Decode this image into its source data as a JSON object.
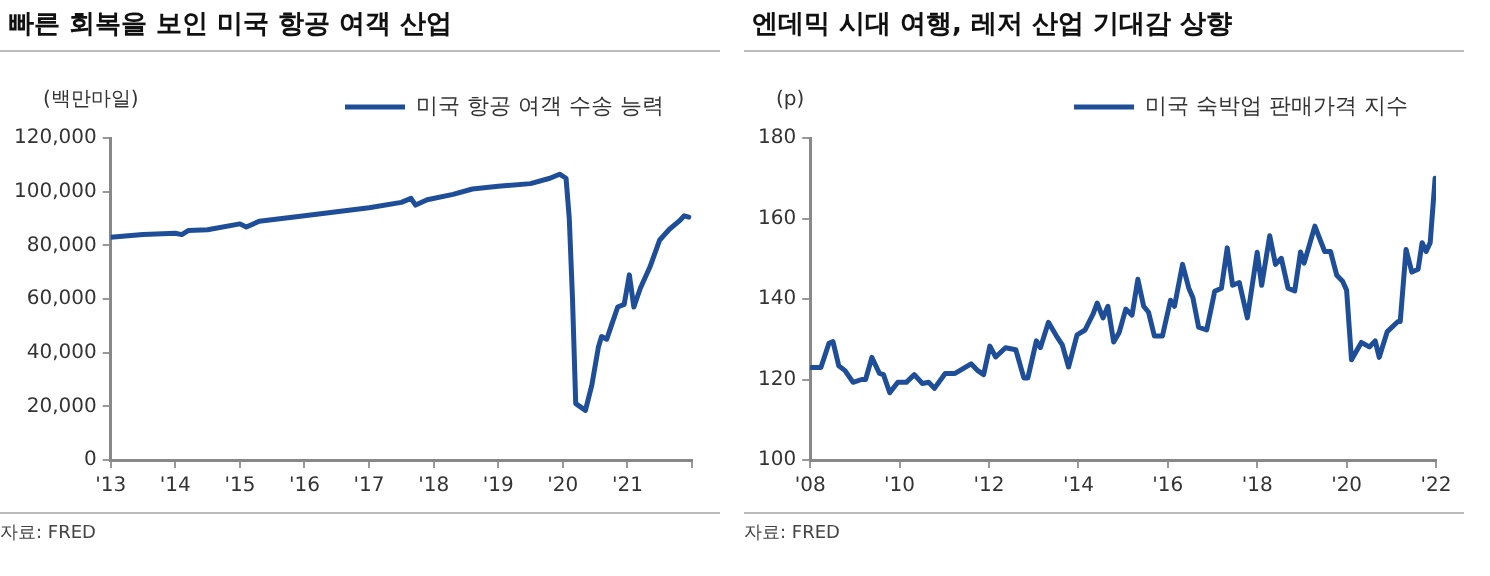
{
  "chart_data": [
    {
      "type": "line",
      "title": "빠른 회복을 보인 미국 항공 여객 산업",
      "ylabel": "(백만마일)",
      "annotations": [
        "자료: FRED"
      ],
      "legend": "top right",
      "grid": false,
      "marker": "none",
      "line_style": "solid",
      "xlim": [
        2013,
        2022
      ],
      "xticks": [
        {
          "value": 2013,
          "label": "'13"
        },
        {
          "value": 2014,
          "label": "'14"
        },
        {
          "value": 2015,
          "label": "'15"
        },
        {
          "value": 2016,
          "label": "'16"
        },
        {
          "value": 2017,
          "label": "'17"
        },
        {
          "value": 2018,
          "label": "'18"
        },
        {
          "value": 2019,
          "label": "'19"
        },
        {
          "value": 2020,
          "label": "'20"
        },
        {
          "value": 2021,
          "label": "'21"
        },
        {
          "value": 2022,
          "label": null
        }
      ],
      "ylim": [
        0,
        120000
      ],
      "yticks": [
        0,
        {
          "value": 20000,
          "label": "20,000"
        },
        {
          "value": 40000,
          "label": "40,000"
        },
        {
          "value": 60000,
          "label": "60,000"
        },
        {
          "value": 80000,
          "label": "80,000"
        },
        {
          "value": 100000,
          "label": "100,000"
        },
        {
          "value": 120000,
          "label": "120,000"
        }
      ],
      "series": [
        {
          "name": "미국 항공 여객 수송 능력",
          "color": "#1f4e99",
          "x": [
            2013.0,
            2013.5,
            2014.0,
            2014.1,
            2014.2,
            2014.5,
            2015.0,
            2015.1,
            2015.3,
            2016.0,
            2016.5,
            2017.0,
            2017.5,
            2017.65,
            2017.72,
            2017.9,
            2018.3,
            2018.6,
            2019.0,
            2019.5,
            2019.8,
            2019.95,
            2020.05,
            2020.1,
            2020.15,
            2020.2,
            2020.35,
            2020.45,
            2020.55,
            2020.6,
            2020.68,
            2020.75,
            2020.85,
            2020.95,
            2021.03,
            2021.1,
            2021.2,
            2021.35,
            2021.5,
            2021.65,
            2021.8,
            2021.88,
            2021.95
          ],
          "values": [
            83000,
            84000,
            84500,
            84000,
            85500,
            85800,
            88000,
            86800,
            89000,
            91000,
            92500,
            94000,
            96000,
            97500,
            95000,
            97000,
            99000,
            101000,
            102000,
            103000,
            105000,
            106500,
            105000,
            90000,
            60000,
            21000,
            18500,
            28000,
            42000,
            46000,
            45000,
            50000,
            57000,
            58000,
            69000,
            57000,
            64000,
            72000,
            82000,
            86000,
            89000,
            91000,
            90500
          ]
        }
      ]
    },
    {
      "type": "line",
      "title": "엔데믹 시대 여행, 레저 산업 기대감 상향",
      "ylabel": "(p)",
      "annotations": [
        "자료: FRED"
      ],
      "legend": "top right",
      "grid": false,
      "marker": "none",
      "line_style": "solid",
      "xlim": [
        2008,
        2022
      ],
      "xticks": [
        {
          "value": 2008,
          "label": "'08"
        },
        {
          "value": 2010,
          "label": "'10"
        },
        {
          "value": 2012,
          "label": "'12"
        },
        {
          "value": 2014,
          "label": "'14"
        },
        {
          "value": 2016,
          "label": "'16"
        },
        {
          "value": 2018,
          "label": "'18"
        },
        {
          "value": 2020,
          "label": "'20"
        },
        {
          "value": 2022,
          "label": "'22"
        }
      ],
      "ylim": [
        100,
        180
      ],
      "yticks": [
        100,
        120,
        140,
        160,
        180
      ],
      "series": [
        {
          "name": "미국 숙박업 판매가격 지수",
          "color": "#1f4e99",
          "x": [
            2008.0,
            2008.24,
            2008.42,
            2008.51,
            2008.64,
            2008.78,
            2008.96,
            2009.15,
            2009.24,
            2009.38,
            2009.55,
            2009.64,
            2009.78,
            2009.96,
            2010.15,
            2010.33,
            2010.51,
            2010.65,
            2010.78,
            2011.02,
            2011.24,
            2011.42,
            2011.6,
            2011.75,
            2011.88,
            2012.02,
            2012.15,
            2012.37,
            2012.6,
            2012.78,
            2012.87,
            2013.06,
            2013.15,
            2013.33,
            2013.51,
            2013.64,
            2013.78,
            2013.97,
            2014.15,
            2014.33,
            2014.42,
            2014.55,
            2014.66,
            2014.79,
            2014.91,
            2015.06,
            2015.2,
            2015.33,
            2015.46,
            2015.57,
            2015.7,
            2015.88,
            2016.06,
            2016.15,
            2016.33,
            2016.47,
            2016.56,
            2016.69,
            2016.87,
            2017.05,
            2017.2,
            2017.33,
            2017.45,
            2017.6,
            2017.78,
            2018.0,
            2018.1,
            2018.28,
            2018.41,
            2018.54,
            2018.69,
            2018.84,
            2018.97,
            2019.05,
            2019.29,
            2019.51,
            2019.64,
            2019.78,
            2019.91,
            2020.0,
            2020.11,
            2020.33,
            2020.51,
            2020.64,
            2020.73,
            2020.91,
            2021.15,
            2021.2,
            2021.33,
            2021.46,
            2021.6,
            2021.69,
            2021.78,
            2021.87,
            2021.98
          ],
          "values": [
            123,
            123,
            129,
            129.4,
            123.4,
            122.2,
            119.3,
            120,
            120,
            125.5,
            121.5,
            121.2,
            116.7,
            119.3,
            119.3,
            121.2,
            119,
            119.3,
            117.8,
            121.5,
            121.5,
            122.7,
            123.9,
            122.2,
            121.2,
            128.3,
            125.6,
            127.9,
            127.4,
            120.4,
            120.4,
            129.6,
            127.9,
            134.2,
            130.8,
            128.6,
            123.1,
            131.1,
            132.3,
            136.3,
            139,
            135.3,
            138.2,
            129.3,
            131.6,
            137.5,
            136,
            144.9,
            138.2,
            136.7,
            130.8,
            130.8,
            139.7,
            138.2,
            148.6,
            142.7,
            140.4,
            133,
            132.3,
            141.9,
            142.7,
            152.7,
            143.4,
            144.1,
            135.3,
            151.6,
            143.4,
            155.7,
            148.6,
            150.1,
            142.7,
            142,
            151.7,
            148.9,
            158.1,
            151.8,
            151.8,
            145.9,
            144.4,
            142.2,
            124.9,
            129.2,
            128.1,
            129.6,
            125.5,
            131.9,
            134.4,
            134.4,
            152.3,
            146.7,
            147.4,
            154,
            151.8,
            154,
            170
          ]
        }
      ]
    }
  ]
}
